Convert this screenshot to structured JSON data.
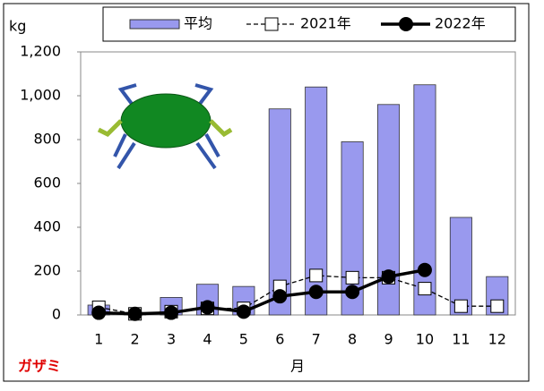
{
  "chart_data": {
    "type": "bar",
    "y_unit": "kg",
    "x_label": "月",
    "annotation": "ガザミ",
    "categories": [
      "1",
      "2",
      "3",
      "4",
      "5",
      "6",
      "7",
      "8",
      "9",
      "10",
      "11",
      "12"
    ],
    "series": [
      {
        "name": "平均",
        "type": "bar",
        "color": "#9999ee",
        "values": [
          45,
          10,
          80,
          140,
          130,
          940,
          1040,
          790,
          960,
          1050,
          445,
          175
        ]
      },
      {
        "name": "2021年",
        "type": "line",
        "color": "#000000",
        "dashed": true,
        "marker": "open-square",
        "values": [
          35,
          5,
          15,
          30,
          30,
          130,
          180,
          170,
          170,
          120,
          40,
          40
        ]
      },
      {
        "name": "2022年",
        "type": "line",
        "color": "#000000",
        "dashed": false,
        "marker": "filled-circle",
        "values": [
          10,
          5,
          10,
          35,
          15,
          85,
          105,
          105,
          175,
          205,
          null,
          null
        ]
      }
    ],
    "ylim": [
      0,
      1200
    ],
    "yticks": [
      0,
      200,
      400,
      600,
      800,
      {
        "value": 1000,
        "label": "1,000"
      },
      {
        "value": 1200,
        "label": "1,200"
      }
    ],
    "grid": false
  }
}
